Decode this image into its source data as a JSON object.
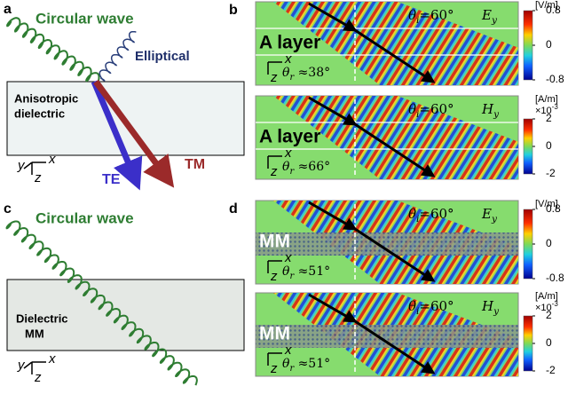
{
  "panels": [
    {
      "label": "a",
      "wave": "Circular wave",
      "reflected": "Elliptical",
      "medium": [
        "Anisotropic",
        "dielectric"
      ],
      "beams": [
        "TE",
        "TM"
      ],
      "axes": [
        "y",
        "x",
        "z"
      ]
    },
    {
      "label": "b",
      "maps": [
        {
          "layer": "A layer",
          "incident": {
            "symbol": "θ",
            "sub": "i",
            "text": "=60°"
          },
          "field": {
            "symbol": "E",
            "sub": "y"
          },
          "refracted": {
            "symbol": "θ",
            "sub": "r",
            "text": " ≈38°"
          },
          "axes": [
            "x",
            "z"
          ],
          "colorbar": {
            "unit": "[V/m]",
            "ticks": [
              0.8,
              0,
              -0.8
            ]
          }
        },
        {
          "layer": "A layer",
          "incident": {
            "symbol": "θ",
            "sub": "i",
            "text": "=60°"
          },
          "field": {
            "symbol": "H",
            "sub": "y"
          },
          "refracted": {
            "symbol": "θ",
            "sub": "r",
            "text": " ≈66°"
          },
          "axes": [
            "x",
            "z"
          ],
          "colorbar": {
            "unit": "[A/m]",
            "scale": {
              "base": "×10",
              "exp": "-3"
            },
            "ticks": [
              2,
              0,
              -2
            ]
          }
        }
      ]
    },
    {
      "label": "c",
      "wave": "Circular wave",
      "medium": [
        "Dielectric",
        "MM"
      ],
      "axes": [
        "y",
        "x",
        "z"
      ]
    },
    {
      "label": "d",
      "maps": [
        {
          "layer": "MM",
          "incident": {
            "symbol": "θ",
            "sub": "i",
            "text": "=60°"
          },
          "field": {
            "symbol": "E",
            "sub": "y"
          },
          "refracted": {
            "symbol": "θ",
            "sub": "r",
            "text": " ≈51°"
          },
          "axes": [
            "x",
            "z"
          ],
          "colorbar": {
            "unit": "[V/m]",
            "ticks": [
              0.8,
              0,
              -0.8
            ]
          }
        },
        {
          "layer": "MM",
          "incident": {
            "symbol": "θ",
            "sub": "i",
            "text": "=60°"
          },
          "field": {
            "symbol": "H",
            "sub": "y"
          },
          "refracted": {
            "symbol": "θ",
            "sub": "r",
            "text": " ≈51°"
          },
          "axes": [
            "x",
            "z"
          ],
          "colorbar": {
            "unit": "[A/m]",
            "scale": {
              "base": "×10",
              "exp": "-3"
            },
            "ticks": [
              2,
              0,
              -2
            ]
          }
        }
      ]
    }
  ]
}
